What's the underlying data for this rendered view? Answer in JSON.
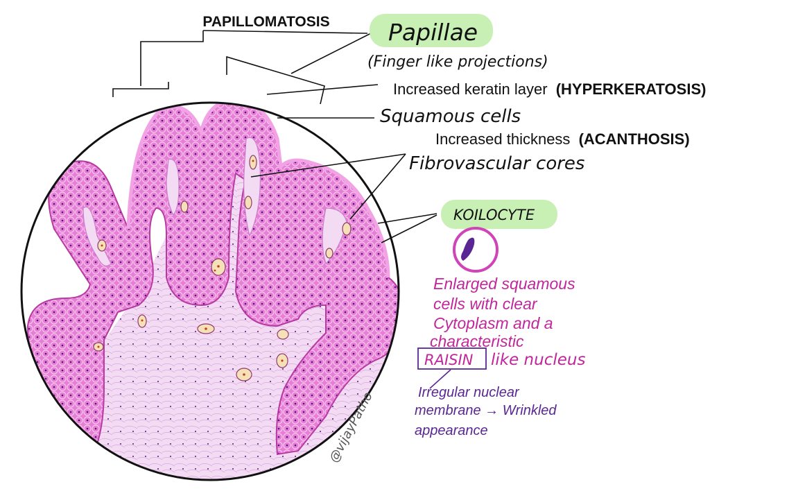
{
  "title": "PAPILLOMATOSIS",
  "labels": {
    "papillae": "Papillae",
    "papillae_desc": "(Finger like projections)",
    "keratin_text": "Increased keratin layer",
    "keratin_term": "(HYPERKERATOSIS)",
    "squamous": "Squamous cells",
    "thickness_text": "Increased thickness",
    "thickness_term": "(ACANTHOSIS)",
    "fibro": "Fibrovascular cores",
    "koilocyte": "KOILOCYTE"
  },
  "koilocyte_desc": {
    "line1": "Enlarged squamous",
    "line2": "cells with clear",
    "line3": "Cytoplasm and a",
    "line4": "characteristic",
    "raisin": "RAISIN",
    "line5_rest": "like nucleus"
  },
  "nuclear_note": {
    "line1": "Irregular nuclear",
    "line2": "membrane → Wrinkled",
    "line3": "appearance"
  },
  "watermark": "@vijayPatho",
  "colors": {
    "tissue": "#e97fd6",
    "tissue_edge": "#b73aa3",
    "stroma": "#f2dcf3",
    "cell_line": "#f7c2ec",
    "nucleus": "#4b1b7a",
    "highlight": "#c8f0b4",
    "pink_text": "#c0279a",
    "purple_text": "#5a2694",
    "ink": "#111111"
  }
}
